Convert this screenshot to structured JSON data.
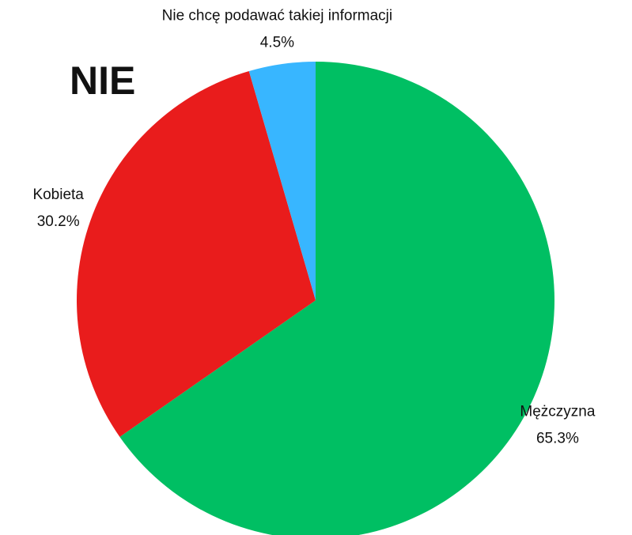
{
  "chart_data": {
    "type": "pie",
    "title": "NIE",
    "categories": [
      "Mężczyzna",
      "Kobieta",
      "Nie chcę podawać takiej informacji"
    ],
    "values": [
      65.3,
      30.2,
      4.5
    ],
    "value_labels": [
      "65.3%",
      "30.2%",
      "4.5%"
    ],
    "colors": [
      "#00bf63",
      "#e91c1c",
      "#38b6ff"
    ]
  }
}
